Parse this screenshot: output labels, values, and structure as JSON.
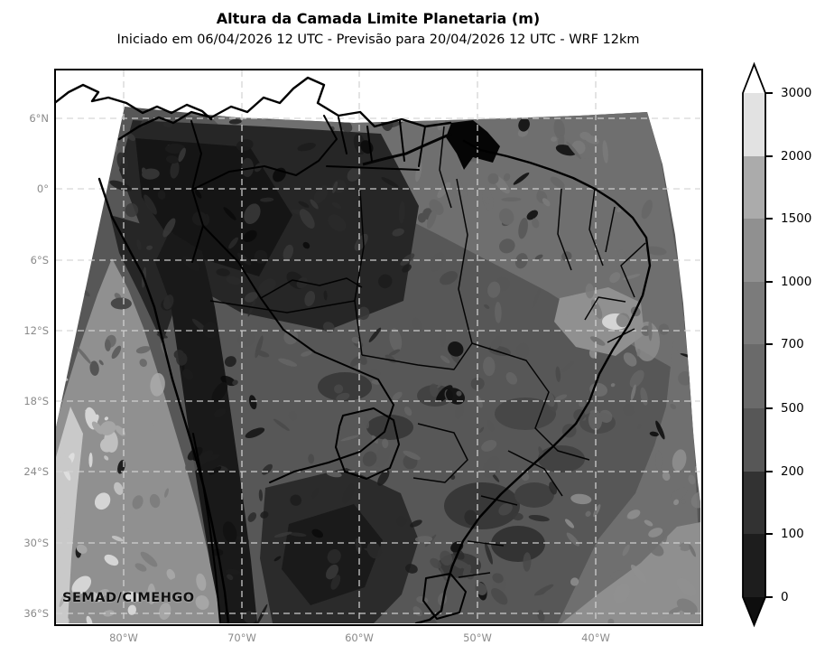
{
  "header": {
    "title": "Altura da Camada Limite Planetaria (m)",
    "subtitle": "Iniciado em 06/04/2026 12 UTC - Previsão para 20/04/2026 12 UTC - WRF 12km"
  },
  "map": {
    "watermark": "SEMAD/CIMEHGO",
    "lat_labels": [
      "6°N",
      "0°",
      "6°S",
      "12°S",
      "18°S",
      "24°S",
      "30°S",
      "36°S"
    ],
    "lon_labels": [
      "80°W",
      "70°W",
      "60°W",
      "50°W",
      "40°W"
    ],
    "gridline_color": "#d4d4d4",
    "coastline_color": "#000000",
    "background_outside_domain": "#ffffff"
  },
  "colorbar": {
    "tick_labels": [
      "3000",
      "2000",
      "1500",
      "1000",
      "700",
      "500",
      "200",
      "100",
      "0"
    ],
    "levels_m": [
      0,
      100,
      200,
      500,
      700,
      1000,
      1500,
      2000,
      3000
    ],
    "segment_colors_top_to_bottom": [
      "#e2e2e2",
      "#ababab",
      "#909090",
      "#7b7b7b",
      "#6a6a6a",
      "#575757",
      "#323232",
      "#1d1d1d"
    ],
    "over_color": "#ffffff",
    "under_color": "#0e0e0e",
    "extend": "both"
  },
  "palette": [
    "#121212",
    "#1d1d1d",
    "#2b2b2b",
    "#3a3a3a",
    "#4a4a4a",
    "#575757",
    "#666666",
    "#6f6f6f",
    "#7b7b7b",
    "#909090",
    "#ababab",
    "#c9c9c9",
    "#e2e2e2"
  ]
}
